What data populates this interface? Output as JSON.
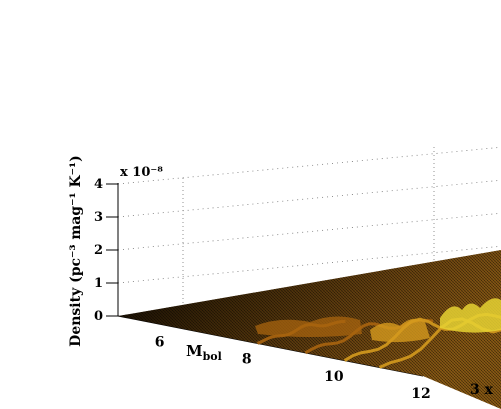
{
  "chart_data": {
    "type": "surface",
    "title": "",
    "xlabel": "",
    "ylabel": "",
    "zlabel": "Density (pc⁻³ mag⁻¹ K⁻¹)",
    "z_exponent_label": "x 10⁻⁸",
    "z_ticks": [
      "0",
      "1",
      "2",
      "3",
      "4"
    ],
    "zlim": [
      0,
      4
    ],
    "mbol_label_main": "M",
    "mbol_label_sub": "bol",
    "mbol_ticks": [
      "6",
      "8",
      "10",
      "12"
    ],
    "mbol_lim": [
      5,
      12
    ],
    "teff_tick_partial": "3 x",
    "grid": true,
    "colormap": [
      "#000000",
      "#5a3a0a",
      "#a8640f",
      "#d49a1e",
      "#e6d233"
    ],
    "ridges": [
      {
        "mbol": 8.2,
        "density": 0.12
      },
      {
        "mbol": 9.3,
        "density": 0.25
      },
      {
        "mbol": 10.2,
        "density": 0.45
      },
      {
        "mbol": 11.0,
        "density": 0.62
      }
    ]
  }
}
